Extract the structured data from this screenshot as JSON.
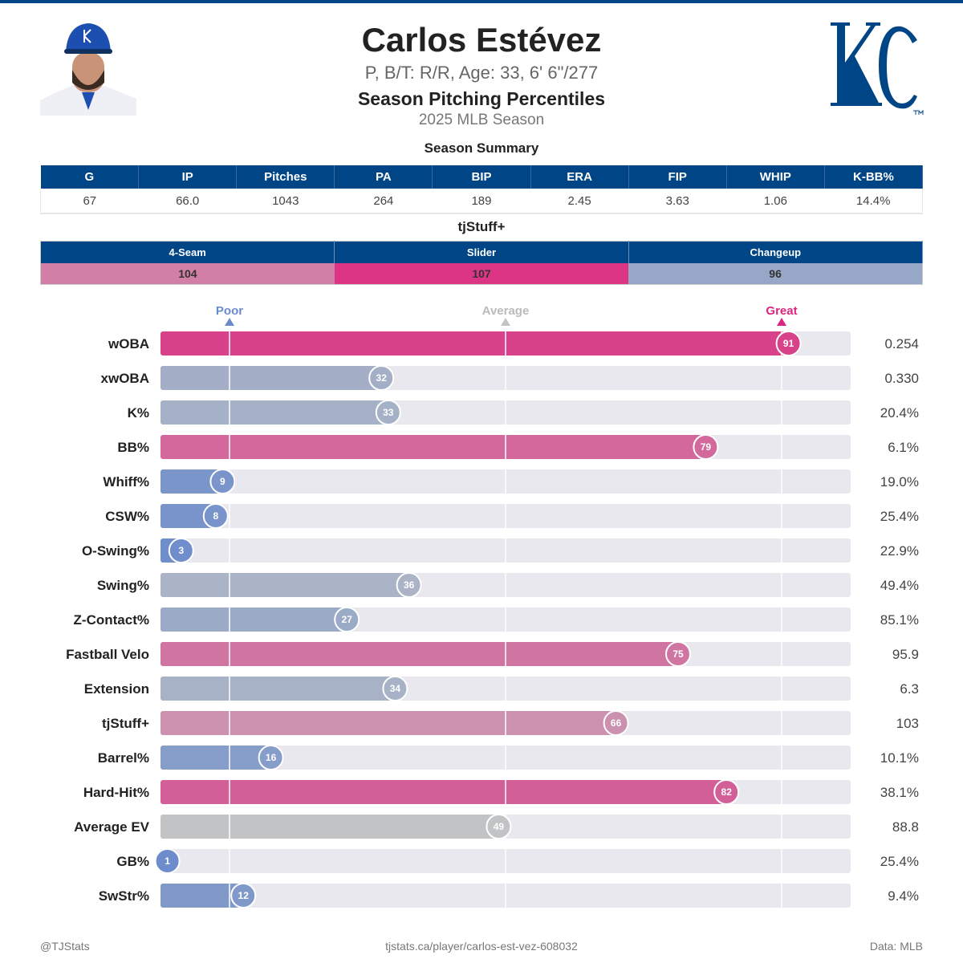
{
  "header": {
    "name": "Carlos Estévez",
    "bio": "P, B/T: R/R, Age: 33, 6' 6\"/277",
    "subtitle": "Season Pitching Percentiles",
    "season": "2025 MLB Season",
    "logo_text": "KC"
  },
  "summary": {
    "title": "Season Summary",
    "columns": [
      "G",
      "IP",
      "Pitches",
      "PA",
      "BIP",
      "ERA",
      "FIP",
      "WHIP",
      "K-BB%"
    ],
    "values": [
      "67",
      "66.0",
      "1043",
      "264",
      "189",
      "2.45",
      "3.63",
      "1.06",
      "14.4%"
    ]
  },
  "tjstuff": {
    "title": "tjStuff+",
    "pitches": [
      {
        "name": "4-Seam",
        "value": "104",
        "color": "#d17fa6"
      },
      {
        "name": "Slider",
        "value": "107",
        "color": "#dc3586"
      },
      {
        "name": "Changeup",
        "value": "96",
        "color": "#97a7c7"
      }
    ]
  },
  "colors": {
    "brand": "#004687",
    "poor": "#6a8bcb",
    "average": "#c4c4c4",
    "great": "#dc267f",
    "track": "#e8e8ee"
  },
  "chart_data": {
    "type": "bar",
    "orientation": "horizontal",
    "xlim": [
      0,
      100
    ],
    "markers": [
      {
        "label": "Poor",
        "value": 10
      },
      {
        "label": "Average",
        "value": 50
      },
      {
        "label": "Great",
        "value": 90
      }
    ],
    "categories": [
      "wOBA",
      "xwOBA",
      "K%",
      "BB%",
      "Whiff%",
      "CSW%",
      "O-Swing%",
      "Swing%",
      "Z-Contact%",
      "Fastball Velo",
      "Extension",
      "tjStuff+",
      "Barrel%",
      "Hard-Hit%",
      "Average EV",
      "GB%",
      "SwStr%"
    ],
    "percentiles": [
      91,
      32,
      33,
      79,
      9,
      8,
      3,
      36,
      27,
      75,
      34,
      66,
      16,
      82,
      49,
      1,
      12
    ],
    "stat_values": [
      "0.254",
      "0.330",
      "20.4%",
      "6.1%",
      "19.0%",
      "25.4%",
      "22.9%",
      "49.4%",
      "85.1%",
      "95.9",
      "6.3",
      "103",
      "10.1%",
      "38.1%",
      "88.8",
      "25.4%",
      "9.4%"
    ]
  },
  "footer": {
    "left": "@TJStats",
    "center": "tjstats.ca/player/carlos-est-vez-608032",
    "right": "Data: MLB"
  }
}
